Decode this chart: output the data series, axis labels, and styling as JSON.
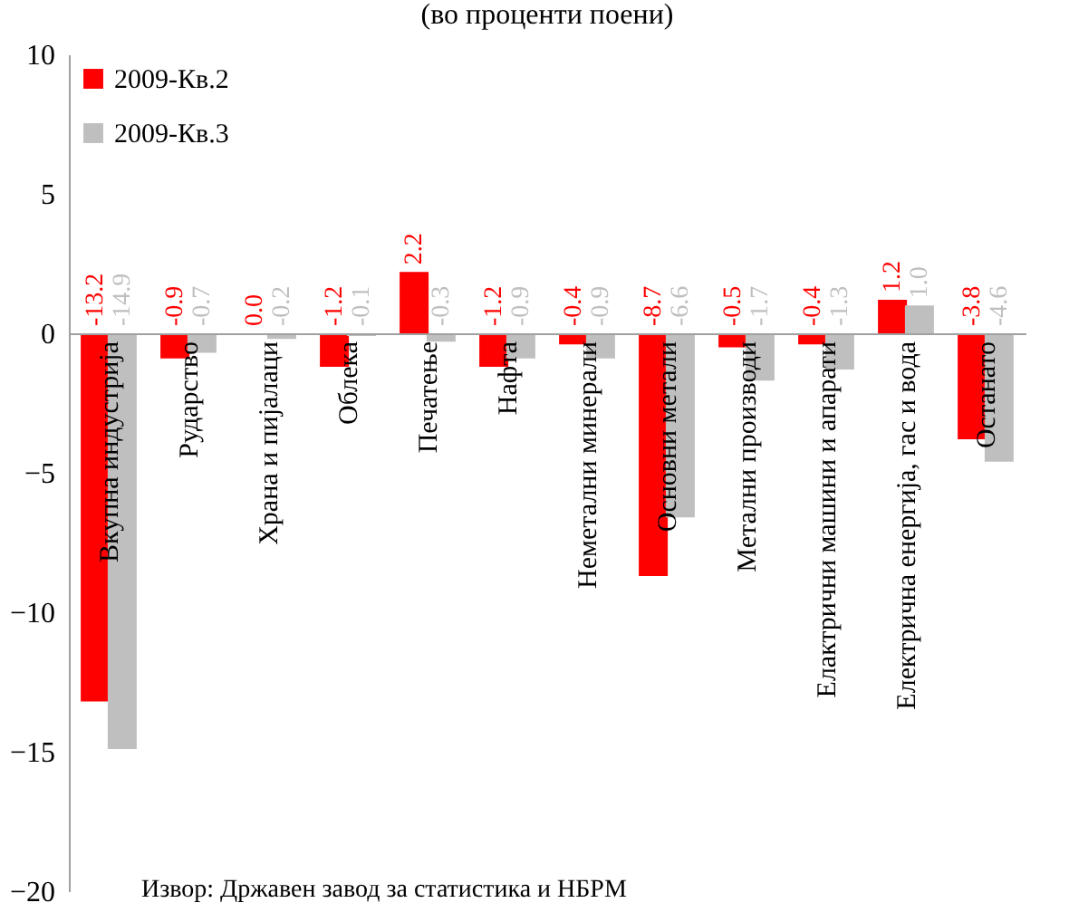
{
  "chart_data": {
    "type": "bar",
    "title": "(во проценти поени)",
    "categories": [
      "Вкупна индустрија",
      "Рударство",
      "Храна и пијалаци",
      "Облека",
      "Печатење",
      "Нафта",
      "Неметални минерали",
      "Основни метали",
      "Метални производи",
      "Елактрични машини и апарати",
      "Електрична енергија, гас и вода",
      "Останато"
    ],
    "series": [
      {
        "name": "2009-Кв.2",
        "color": "#ff0000",
        "values": [
          -13.2,
          -0.9,
          0.0,
          -1.2,
          2.2,
          -1.2,
          -0.4,
          -8.7,
          -0.5,
          -0.4,
          1.2,
          -3.8
        ],
        "value_labels": [
          "-13.2",
          "-0.9",
          "0.0",
          "-1.2",
          "2.2",
          "-1.2",
          "-0.4",
          "-8.7",
          "-0.5",
          "-0.4",
          "1.2",
          "-3.8"
        ]
      },
      {
        "name": "2009-Кв.3",
        "color": "#bfbfbf",
        "values": [
          -14.9,
          -0.7,
          -0.2,
          -0.1,
          -0.3,
          -0.9,
          -0.9,
          -6.6,
          -1.7,
          -1.3,
          1.0,
          -4.6
        ],
        "value_labels": [
          "-14.9",
          "-0.7",
          "-0.2",
          "-0.1",
          "-0.3",
          "-0.9",
          "-0.9",
          "-6.6",
          "-1.7",
          "-1.3",
          "1.0",
          "-4.6"
        ]
      }
    ],
    "ylim": [
      -20,
      10
    ],
    "yticks": [
      -20,
      -15,
      -10,
      -5,
      0,
      5,
      10
    ],
    "legend": "top left",
    "grid": false,
    "annotations": [
      "Извор: Државен завод за статистика и НБРМ"
    ]
  }
}
